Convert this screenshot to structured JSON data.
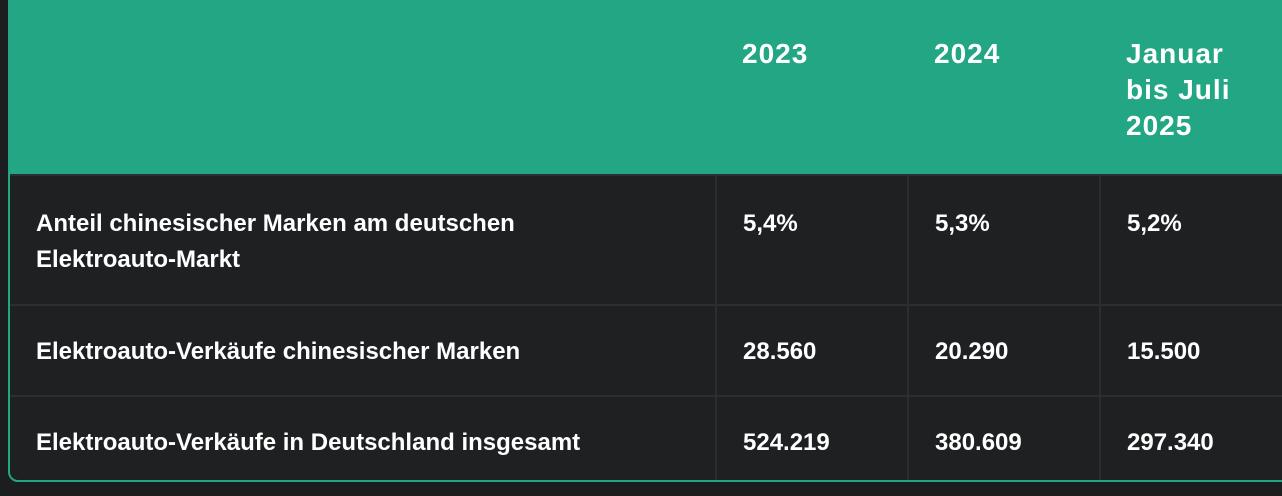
{
  "table": {
    "headers": [
      "",
      "2023",
      "2024",
      "Januar bis Juli 2025"
    ],
    "rows": [
      {
        "label": "Anteil chinesischer Marken am deutschen Elektroauto-Markt",
        "values": [
          "5,4%",
          "5,3%",
          "5,2%"
        ]
      },
      {
        "label": "Elektroauto-Verkäufe chinesischer Marken",
        "values": [
          "28.560",
          "20.290",
          "15.500"
        ]
      },
      {
        "label": "Elektroauto-Verkäufe in Deutschland insgesamt",
        "values": [
          "524.219",
          "380.609",
          "297.340"
        ]
      }
    ]
  },
  "colors": {
    "header_bg": "#22a684",
    "body_bg": "#1e2022",
    "border": "#22a684"
  }
}
